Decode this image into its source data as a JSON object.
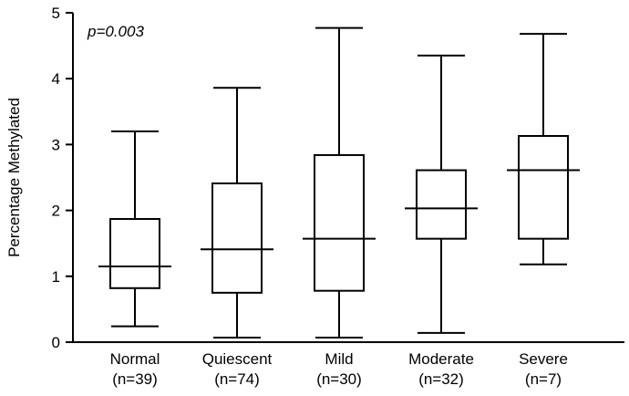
{
  "chart_data": {
    "type": "box",
    "title": "",
    "ylabel": "Percentage Methylated",
    "xlabel": "",
    "ylim": [
      0,
      5
    ],
    "yticks": [
      0,
      1,
      2,
      3,
      4,
      5
    ],
    "annotation": "p=0.003",
    "grid": false,
    "legend": "none",
    "groups": [
      {
        "label": "Normal",
        "n": "(n=39)",
        "min": 0.24,
        "q1": 0.82,
        "median": 1.15,
        "q3": 1.87,
        "max": 3.2
      },
      {
        "label": "Quiescent",
        "n": "(n=74)",
        "min": 0.07,
        "q1": 0.75,
        "median": 1.41,
        "q3": 2.41,
        "max": 3.86
      },
      {
        "label": "Mild",
        "n": "(n=30)",
        "min": 0.07,
        "q1": 0.78,
        "median": 1.57,
        "q3": 2.84,
        "max": 4.77
      },
      {
        "label": "Moderate",
        "n": "(n=32)",
        "min": 0.14,
        "q1": 1.57,
        "median": 2.03,
        "q3": 2.61,
        "max": 4.35
      },
      {
        "label": "Severe",
        "n": "(n=7)",
        "min": 1.18,
        "q1": 1.57,
        "median": 2.61,
        "q3": 3.13,
        "max": 4.68
      }
    ]
  }
}
